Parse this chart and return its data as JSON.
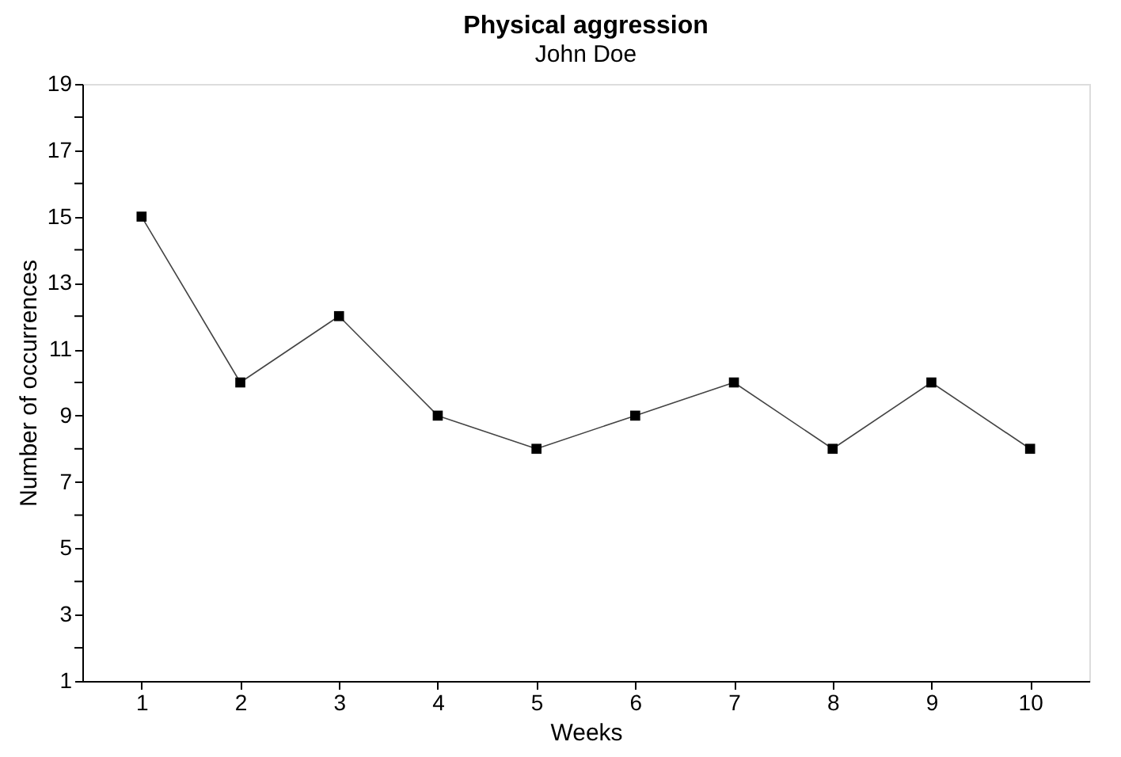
{
  "chart_data": {
    "type": "line",
    "title": "Physical aggression",
    "subtitle": "John Doe",
    "xlabel": "Weeks",
    "ylabel": "Number of occurrences",
    "categories": [
      "1",
      "2",
      "3",
      "4",
      "5",
      "6",
      "7",
      "8",
      "9",
      "10"
    ],
    "series": [
      {
        "color": "#000000",
        "values": [
          15,
          10,
          12,
          9,
          8,
          9,
          10,
          8,
          10,
          8
        ]
      }
    ],
    "ylim": [
      1,
      19
    ],
    "yticks": [
      1,
      {
        "value": 2,
        "label": null
      },
      3,
      {
        "value": 4,
        "label": null
      },
      5,
      {
        "value": 6,
        "label": null
      },
      7,
      {
        "value": 8,
        "label": null
      },
      9,
      {
        "value": 10,
        "label": null
      },
      11,
      {
        "value": 12,
        "label": null
      },
      13,
      {
        "value": 14,
        "label": null
      },
      15,
      {
        "value": 16,
        "label": null
      },
      17,
      {
        "value": 18,
        "label": null
      },
      19
    ],
    "marker": "square",
    "line_style": "solid",
    "grid": false,
    "legend": false
  }
}
